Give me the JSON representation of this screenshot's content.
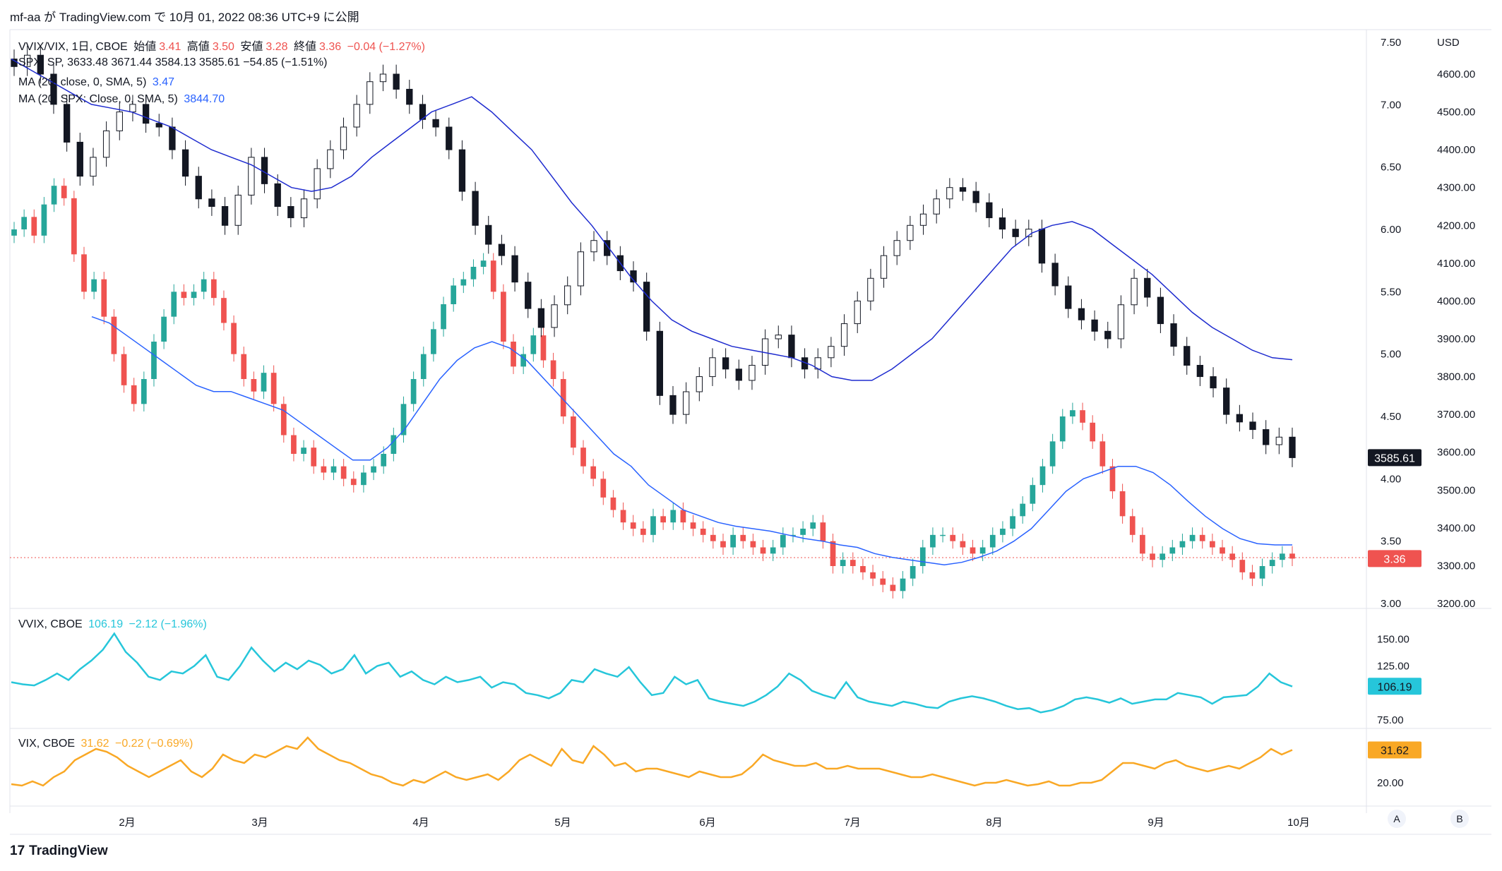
{
  "header": {
    "text": "mf-aa が TradingView.com で 10月 01, 2022 08:36 UTC+9 に公開"
  },
  "legend": {
    "main": {
      "symbol": "VVIX/VIX, 1日, CBOE",
      "o_label": "始値",
      "o_value": "3.41",
      "h_label": "高値",
      "h_value": "3.50",
      "l_label": "安値",
      "l_value": "3.28",
      "c_label": "終値",
      "c_value": "3.36",
      "change": "−0.04 (−1.27%)"
    },
    "spx": {
      "text": "SPX, SP, 3633.48 3671.44 3584.13 3585.61 −54.85 (−1.51%)"
    },
    "ma1": {
      "label": "MA (20, close, 0, SMA, 5)",
      "value": "3.47"
    },
    "ma2": {
      "label": "MA (20, SPX: Close, 0, SMA, 5)",
      "value": "3844.70"
    },
    "vvix": {
      "label": "VVIX, CBOE",
      "value": "106.19",
      "change": "−2.12 (−1.96%)"
    },
    "vix": {
      "label": "VIX, CBOE",
      "value": "31.62",
      "change": "−0.22 (−0.69%)"
    }
  },
  "badges": {
    "spx": "3585.61",
    "ratio": "3.36",
    "vvix": "106.19",
    "vix": "31.62"
  },
  "axis_buttons": {
    "a": "A",
    "b": "B"
  },
  "brand": {
    "logo": "17",
    "name": "TradingView"
  },
  "colors": {
    "up": "#26a69a",
    "down": "#ef5350",
    "ma": "#2962ff",
    "vvix": "#26c6da",
    "vix": "#f9a825",
    "spx": "#131722"
  },
  "chart_data": [
    {
      "type": "line",
      "title": "VVIX/VIX, 1日, CBOE + SPX",
      "x_ticks": [
        "2月",
        "3月",
        "4月",
        "5月",
        "6月",
        "7月",
        "8月",
        "9月",
        "10月"
      ],
      "y_ticks_ratio": [
        "7.50",
        "7.00",
        "6.50",
        "6.00",
        "5.50",
        "5.00",
        "4.50",
        "4.00",
        "3.50",
        "3.00"
      ],
      "y_ticks_spx": [
        "USD",
        "4600.00",
        "4500.00",
        "4400.00",
        "4300.00",
        "4200.00",
        "4100.00",
        "4000.00",
        "3900.00",
        "3800.00",
        "3700.00",
        "3600.00",
        "3500.00",
        "3400.00",
        "3300.00",
        "3200.00"
      ],
      "ylim_ratio": [
        3.0,
        7.5
      ],
      "ylim_spx": [
        3200,
        4640
      ],
      "series": [
        {
          "values": [
            6.0,
            6.1,
            5.95,
            6.2,
            6.35,
            6.25,
            5.8,
            5.5,
            5.6,
            5.3,
            5.0,
            4.75,
            4.6,
            4.8,
            5.1,
            5.3,
            5.5,
            5.45,
            5.5,
            5.6,
            5.45,
            5.25,
            5.0,
            4.8,
            4.7,
            4.85,
            4.6,
            4.35,
            4.2,
            4.25,
            4.1,
            4.05,
            4.1,
            4.0,
            3.95,
            4.05,
            4.1,
            4.2,
            4.35,
            4.6,
            4.8,
            5.0,
            5.2,
            5.4,
            5.55,
            5.6,
            5.7,
            5.75,
            5.5,
            5.1,
            4.9,
            5.0,
            5.15,
            4.95,
            4.8,
            4.5,
            4.25,
            4.1,
            4.0,
            3.85,
            3.75,
            3.65,
            3.6,
            3.55,
            3.7,
            3.65,
            3.75,
            3.65,
            3.6,
            3.55,
            3.5,
            3.45,
            3.55,
            3.5,
            3.45,
            3.4,
            3.45,
            3.55,
            3.55,
            3.6,
            3.65,
            3.5,
            3.3,
            3.35,
            3.3,
            3.25,
            3.2,
            3.15,
            3.1,
            3.2,
            3.3,
            3.45,
            3.55,
            3.55,
            3.5,
            3.45,
            3.4,
            3.45,
            3.55,
            3.6,
            3.7,
            3.8,
            3.95,
            4.1,
            4.3,
            4.5,
            4.55,
            4.45,
            4.3,
            4.1,
            3.9,
            3.7,
            3.55,
            3.4,
            3.35,
            3.4,
            3.45,
            3.5,
            3.55,
            3.5,
            3.45,
            3.4,
            3.35,
            3.25,
            3.2,
            3.3,
            3.35,
            3.4,
            3.36
          ]
        },
        {
          "values": [
            5.3,
            5.25,
            5.15,
            5.05,
            4.95,
            4.85,
            4.75,
            4.7,
            4.7,
            4.65,
            4.6,
            4.55,
            4.45,
            4.35,
            4.25,
            4.15,
            4.15,
            4.25,
            4.4,
            4.6,
            4.8,
            4.95,
            5.05,
            5.1,
            5.05,
            4.95,
            4.8,
            4.65,
            4.5,
            4.35,
            4.2,
            4.1,
            3.95,
            3.85,
            3.75,
            3.7,
            3.65,
            3.62,
            3.6,
            3.58,
            3.55,
            3.52,
            3.5,
            3.47,
            3.45,
            3.4,
            3.37,
            3.35,
            3.33,
            3.31,
            3.33,
            3.37,
            3.42,
            3.5,
            3.6,
            3.75,
            3.9,
            4.0,
            4.05,
            4.1,
            4.1,
            4.05,
            3.95,
            3.82,
            3.7,
            3.6,
            3.52,
            3.48,
            3.47,
            3.47
          ]
        },
        {
          "name": "SPX",
          "values": [
            4620,
            4650,
            4600,
            4520,
            4420,
            4330,
            4380,
            4450,
            4500,
            4520,
            4470,
            4460,
            4400,
            4330,
            4270,
            4250,
            4200,
            4280,
            4380,
            4310,
            4250,
            4220,
            4270,
            4350,
            4400,
            4460,
            4520,
            4580,
            4600,
            4560,
            4520,
            4480,
            4460,
            4400,
            4290,
            4200,
            4150,
            4120,
            4050,
            3980,
            3930,
            3990,
            4040,
            4130,
            4160,
            4120,
            4080,
            4050,
            3920,
            3750,
            3700,
            3760,
            3800,
            3850,
            3820,
            3790,
            3830,
            3900,
            3910,
            3850,
            3820,
            3850,
            3880,
            3940,
            4000,
            4060,
            4120,
            4160,
            4200,
            4230,
            4270,
            4300,
            4290,
            4260,
            4220,
            4190,
            4170,
            4190,
            4100,
            4040,
            3980,
            3950,
            3920,
            3900,
            3990,
            4060,
            4010,
            3940,
            3880,
            3830,
            3800,
            3770,
            3700,
            3680,
            3660,
            3620,
            3640,
            3585.61
          ]
        },
        {
          "values": [
            4640,
            4610,
            4580,
            4550,
            4520,
            4510,
            4500,
            4480,
            4460,
            4430,
            4400,
            4380,
            4360,
            4330,
            4300,
            4290,
            4300,
            4330,
            4380,
            4420,
            4460,
            4500,
            4520,
            4540,
            4500,
            4450,
            4400,
            4330,
            4260,
            4200,
            4130,
            4060,
            4000,
            3950,
            3920,
            3900,
            3880,
            3870,
            3860,
            3850,
            3830,
            3800,
            3790,
            3790,
            3820,
            3860,
            3900,
            3960,
            4020,
            4080,
            4140,
            4180,
            4200,
            4210,
            4190,
            4150,
            4110,
            4070,
            4020,
            3970,
            3930,
            3900,
            3870,
            3850,
            3844.7
          ]
        }
      ]
    },
    {
      "type": "line",
      "title": "VVIX, CBOE",
      "ylim": [
        75,
        160
      ],
      "y_ticks": [
        "150.00",
        "125.00",
        "75.00"
      ],
      "series": [
        {
          "values": [
            110,
            108,
            107,
            112,
            118,
            112,
            122,
            130,
            140,
            155,
            138,
            128,
            115,
            112,
            120,
            118,
            125,
            135,
            115,
            112,
            125,
            142,
            130,
            120,
            128,
            122,
            130,
            126,
            118,
            122,
            135,
            118,
            125,
            128,
            115,
            120,
            112,
            108,
            115,
            110,
            112,
            115,
            105,
            110,
            108,
            100,
            98,
            95,
            100,
            112,
            110,
            122,
            118,
            115,
            124,
            110,
            98,
            100,
            115,
            108,
            112,
            95,
            92,
            90,
            88,
            92,
            98,
            106,
            118,
            112,
            102,
            98,
            95,
            110,
            96,
            92,
            90,
            88,
            92,
            90,
            87,
            86,
            92,
            95,
            97,
            95,
            92,
            88,
            85,
            86,
            82,
            84,
            88,
            94,
            96,
            94,
            91,
            95,
            90,
            92,
            94,
            94,
            100,
            98,
            96,
            90,
            96,
            97,
            98,
            106,
            118,
            110,
            106
          ]
        }
      ]
    },
    {
      "type": "line",
      "title": "VIX, CBOE",
      "ylim": [
        16,
        36
      ],
      "y_ticks": [
        "20.00"
      ],
      "series": [
        {
          "values": [
            19.5,
            19,
            20.5,
            19,
            22,
            24,
            28,
            30,
            32,
            31,
            29,
            26,
            24,
            22,
            24,
            26,
            28,
            24,
            22,
            25,
            30,
            28,
            27,
            30,
            29,
            31,
            33,
            32,
            36,
            32,
            30,
            28,
            27,
            25,
            23,
            22,
            20,
            19,
            21,
            20,
            22,
            24,
            22,
            21,
            22,
            23,
            21,
            24,
            28,
            30,
            28,
            26,
            32,
            28,
            27,
            33,
            30,
            26,
            27,
            24,
            25,
            25,
            24,
            23,
            22,
            24,
            23,
            22,
            22,
            23,
            26,
            30,
            28,
            27,
            26,
            26,
            27,
            25,
            25,
            26,
            25,
            25,
            25,
            24,
            23,
            22,
            22,
            23,
            22,
            21,
            20,
            19,
            20,
            20,
            21,
            20,
            19,
            19.5,
            20.5,
            19,
            19,
            20,
            20,
            21,
            24,
            27,
            27,
            26,
            25,
            27,
            28,
            26,
            25,
            24,
            25,
            26,
            25,
            27,
            29,
            32,
            30,
            31.62
          ]
        }
      ]
    }
  ]
}
